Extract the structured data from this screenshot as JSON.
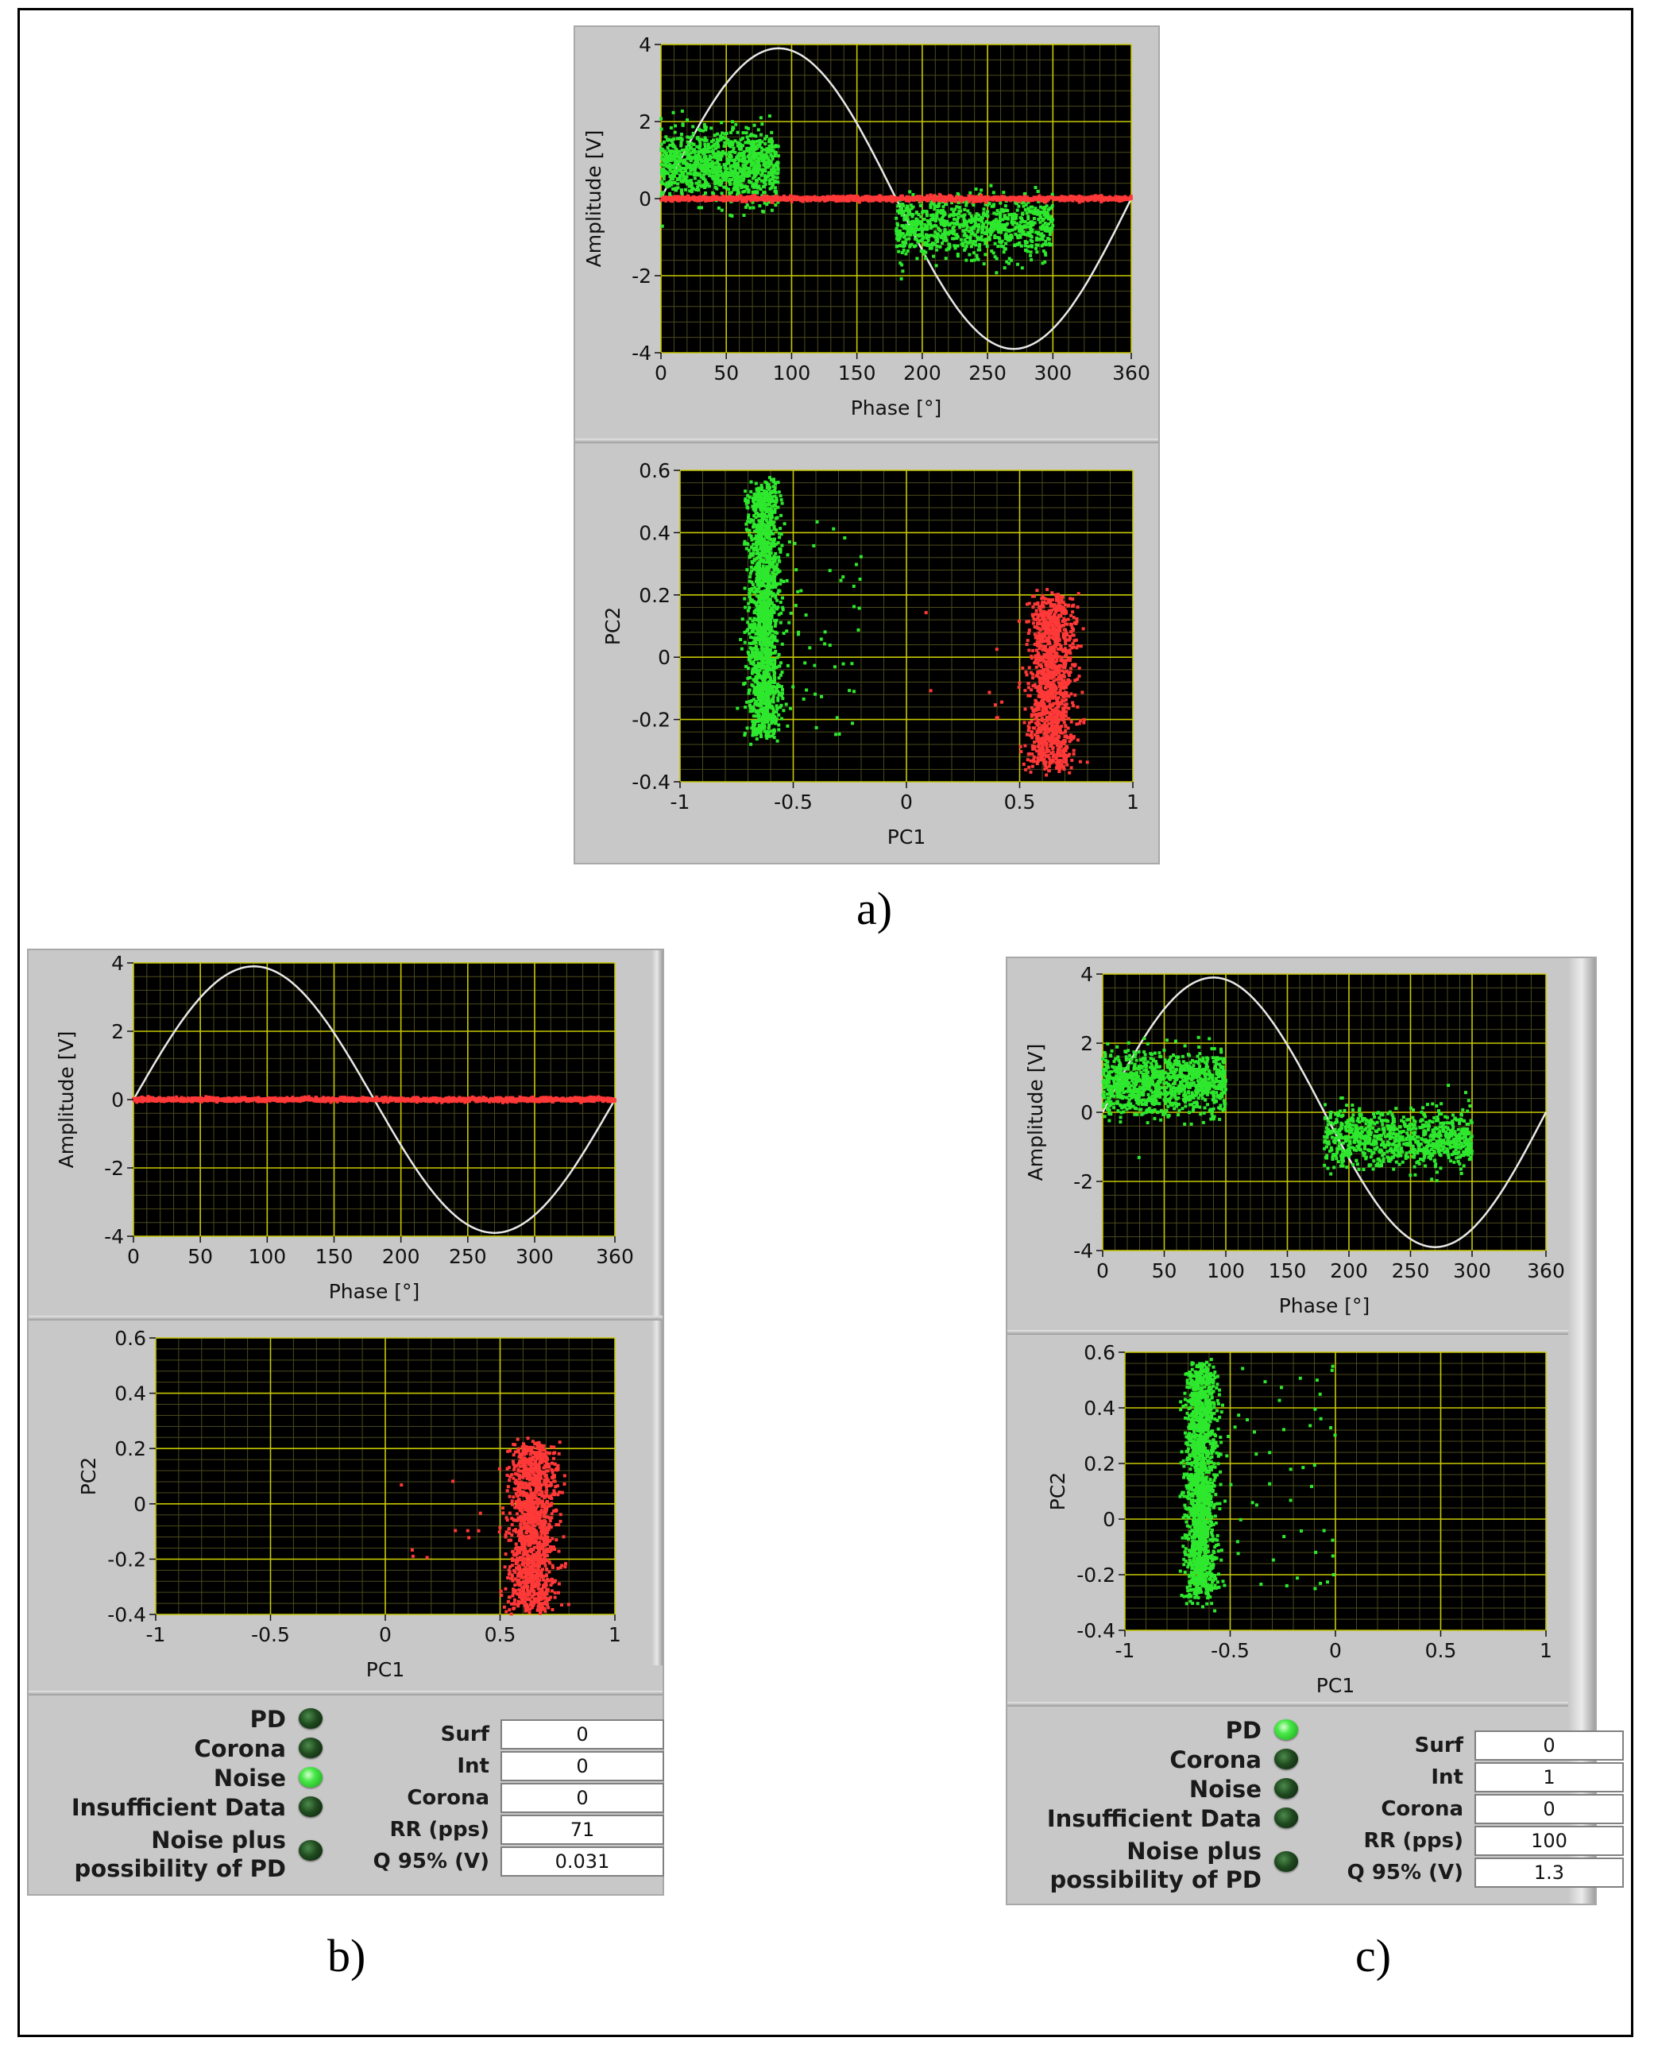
{
  "captions": {
    "a": "a)",
    "b": "b)",
    "c": "c)"
  },
  "colors": {
    "pd_points": "#2ee82e",
    "noise_points": "#ff3838",
    "reference_sine": "#e8e8e8",
    "grid_major": "#c8c800",
    "plot_background": "#000000"
  },
  "chart_data": [
    {
      "panel": "a",
      "type": "scatter",
      "xlabel": "Phase [°]",
      "ylabel": "Amplitude [V]",
      "xlim": [
        0,
        360
      ],
      "ylim": [
        -4,
        4
      ],
      "xticks": [
        0,
        50,
        100,
        150,
        200,
        250,
        300,
        360
      ],
      "yticks": [
        -4,
        -2,
        0,
        2,
        4
      ],
      "reference_sine_amplitude": 3.9,
      "series": [
        {
          "color": "#2ee82e",
          "clusters": [
            {
              "x_range": [
                0,
                90
              ],
              "y_mean": 0.85,
              "y_spread": 0.45,
              "count": 1100
            },
            {
              "x_range": [
                180,
                300
              ],
              "y_mean": -0.75,
              "y_spread": 0.4,
              "count": 900
            }
          ]
        },
        {
          "color": "#ff3838",
          "clusters": [
            {
              "x_range": [
                0,
                360
              ],
              "y_mean": 0,
              "y_spread": 0.03,
              "count": 1400
            }
          ]
        }
      ]
    },
    {
      "panel": "a",
      "type": "scatter",
      "xlabel": "PC1",
      "ylabel": "PC2",
      "xlim": [
        -1,
        1
      ],
      "ylim": [
        -0.4,
        0.6
      ],
      "xticks": [
        -1,
        -0.5,
        0,
        0.5,
        1
      ],
      "yticks": [
        -0.4,
        -0.2,
        0,
        0.2,
        0.4,
        0.6
      ],
      "series": [
        {
          "color": "#2ee82e",
          "clusters": [
            {
              "x_center": -0.63,
              "x_spread": 0.035,
              "y_range": [
                -0.25,
                0.55
              ],
              "count": 1600
            },
            {
              "x_range": [
                -0.6,
                -0.2
              ],
              "y_range": [
                -0.25,
                0.45
              ],
              "count": 60
            }
          ]
        },
        {
          "color": "#ff3838",
          "clusters": [
            {
              "x_center": 0.64,
              "x_spread": 0.05,
              "y_range": [
                -0.35,
                0.18
              ],
              "count": 1300
            },
            {
              "x_range": [
                0.05,
                0.5
              ],
              "y_range": [
                -0.2,
                0.15
              ],
              "count": 8
            }
          ]
        }
      ]
    },
    {
      "panel": "b",
      "type": "scatter",
      "xlabel": "Phase [°]",
      "ylabel": "Amplitude [V]",
      "xlim": [
        0,
        360
      ],
      "ylim": [
        -4,
        4
      ],
      "xticks": [
        0,
        50,
        100,
        150,
        200,
        250,
        300,
        360
      ],
      "yticks": [
        -4,
        -2,
        0,
        2,
        4
      ],
      "reference_sine_amplitude": 3.9,
      "series": [
        {
          "color": "#ff3838",
          "clusters": [
            {
              "x_range": [
                0,
                360
              ],
              "y_mean": 0,
              "y_spread": 0.03,
              "count": 1400
            }
          ]
        }
      ]
    },
    {
      "panel": "b",
      "type": "scatter",
      "xlabel": "PC1",
      "ylabel": "PC2",
      "xlim": [
        -1,
        1
      ],
      "ylim": [
        -0.4,
        0.6
      ],
      "xticks": [
        -1,
        -0.5,
        0,
        0.5,
        1
      ],
      "yticks": [
        -0.4,
        -0.2,
        0,
        0.2,
        0.4,
        0.6
      ],
      "series": [
        {
          "color": "#ff3838",
          "clusters": [
            {
              "x_center": 0.64,
              "x_spread": 0.05,
              "y_range": [
                -0.38,
                0.2
              ],
              "count": 1400
            },
            {
              "x_range": [
                0.05,
                0.5
              ],
              "y_range": [
                -0.22,
                0.2
              ],
              "count": 10
            }
          ]
        }
      ]
    },
    {
      "panel": "c",
      "type": "scatter",
      "xlabel": "Phase [°]",
      "ylabel": "Amplitude [V]",
      "xlim": [
        0,
        360
      ],
      "ylim": [
        -4,
        4
      ],
      "xticks": [
        0,
        50,
        100,
        150,
        200,
        250,
        300,
        360
      ],
      "yticks": [
        -4,
        -2,
        0,
        2,
        4
      ],
      "reference_sine_amplitude": 3.9,
      "series": [
        {
          "color": "#2ee82e",
          "clusters": [
            {
              "x_range": [
                0,
                100
              ],
              "y_mean": 0.85,
              "y_spread": 0.45,
              "count": 1100
            },
            {
              "x_range": [
                180,
                300
              ],
              "y_mean": -0.75,
              "y_spread": 0.4,
              "count": 900
            }
          ]
        }
      ]
    },
    {
      "panel": "c",
      "type": "scatter",
      "xlabel": "PC1",
      "ylabel": "PC2",
      "xlim": [
        -1,
        1
      ],
      "ylim": [
        -0.4,
        0.6
      ],
      "xticks": [
        -1,
        -0.5,
        0,
        0.5,
        1
      ],
      "yticks": [
        -0.4,
        -0.2,
        0,
        0.2,
        0.4,
        0.6
      ],
      "series": [
        {
          "color": "#2ee82e",
          "clusters": [
            {
              "x_center": -0.64,
              "x_spread": 0.035,
              "y_range": [
                -0.28,
                0.55
              ],
              "count": 1600
            },
            {
              "x_range": [
                -0.6,
                -0.0
              ],
              "y_range": [
                -0.25,
                0.55
              ],
              "count": 60
            }
          ]
        }
      ]
    }
  ],
  "status": {
    "b": {
      "indicators": [
        {
          "label": "PD",
          "on": false
        },
        {
          "label": "Corona",
          "on": false
        },
        {
          "label": "Noise",
          "on": true
        },
        {
          "label": "Insufficient Data",
          "on": false
        },
        {
          "label": "Noise plus",
          "label2": "possibility of PD",
          "on": false
        }
      ],
      "fields": [
        {
          "label": "Surf",
          "value": "0"
        },
        {
          "label": "Int",
          "value": "0"
        },
        {
          "label": "Corona",
          "value": "0"
        },
        {
          "label": "RR (pps)",
          "value": "71"
        },
        {
          "label": "Q 95% (V)",
          "value": "0.031"
        }
      ]
    },
    "c": {
      "indicators": [
        {
          "label": "PD",
          "on": true
        },
        {
          "label": "Corona",
          "on": false
        },
        {
          "label": "Noise",
          "on": false
        },
        {
          "label": "Insufficient Data",
          "on": false
        },
        {
          "label": "Noise plus",
          "label2": "possibility of PD",
          "on": false
        }
      ],
      "fields": [
        {
          "label": "Surf",
          "value": "0"
        },
        {
          "label": "Int",
          "value": "1"
        },
        {
          "label": "Corona",
          "value": "0"
        },
        {
          "label": "RR (pps)",
          "value": "100"
        },
        {
          "label": "Q 95% (V)",
          "value": "1.3"
        }
      ]
    }
  }
}
